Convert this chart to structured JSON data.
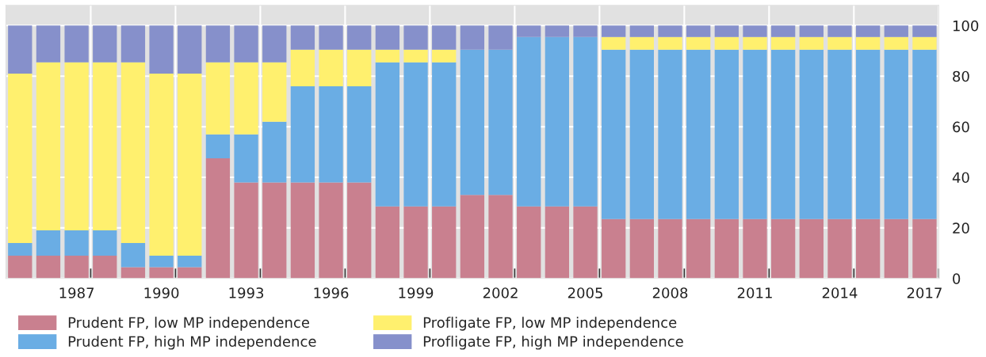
{
  "chart_data": {
    "type": "bar",
    "stacked": true,
    "categories": [
      null,
      null,
      "1987",
      null,
      null,
      "1990",
      null,
      null,
      "1993",
      null,
      null,
      "1996",
      null,
      null,
      "1999",
      null,
      null,
      "2002",
      null,
      null,
      "2005",
      null,
      null,
      "2008",
      null,
      null,
      "2011",
      null,
      null,
      "2014",
      null,
      null,
      "2017"
    ],
    "series": [
      {
        "name": "Prudent FP, low MP independence",
        "color": "#c9808f",
        "values": [
          9,
          9,
          9,
          9,
          4.5,
          4.5,
          4.5,
          47.5,
          38,
          38,
          38,
          38,
          38,
          28.5,
          28.5,
          28.5,
          33,
          33,
          28.5,
          28.5,
          28.5,
          23.5,
          23.5,
          23.5,
          23.5,
          23.5,
          23.5,
          23.5,
          23.5,
          23.5,
          23.5,
          23.5,
          23.5
        ]
      },
      {
        "name": "Prudent FP, high MP independence",
        "color": "#6aade4",
        "values": [
          5,
          10,
          10,
          10,
          9.5,
          4.5,
          4.5,
          9.5,
          19,
          24,
          38,
          38,
          38,
          57,
          57,
          57,
          57.5,
          57.5,
          67,
          67,
          67,
          67,
          67,
          67,
          67,
          67,
          67,
          67,
          67,
          67,
          67,
          67,
          67
        ]
      },
      {
        "name": "Profligate FP, low MP independence",
        "color": "#fff06e",
        "values": [
          67,
          66.5,
          66.5,
          66.5,
          71.5,
          72,
          72,
          28.5,
          28.5,
          23.5,
          14.5,
          14.5,
          14.5,
          5,
          5,
          5,
          0,
          0,
          0,
          0,
          0,
          5,
          5,
          5,
          5,
          5,
          5,
          5,
          5,
          5,
          5,
          5,
          5
        ]
      },
      {
        "name": "Profligate FP, high MP independence",
        "color": "#8690cb",
        "values": [
          19,
          14.5,
          14.5,
          14.5,
          14.5,
          19,
          19,
          14.5,
          14.5,
          14.5,
          9.5,
          9.5,
          9.5,
          9.5,
          9.5,
          9.5,
          9.5,
          9.5,
          4.5,
          4.5,
          4.5,
          4.5,
          4.5,
          4.5,
          4.5,
          4.5,
          4.5,
          4.5,
          4.5,
          4.5,
          4.5,
          4.5,
          4.5
        ]
      }
    ],
    "ylim": [
      0,
      108
    ],
    "yticks": [
      0,
      20,
      40,
      60,
      80,
      100
    ],
    "grid": true,
    "legend": "bottom"
  }
}
